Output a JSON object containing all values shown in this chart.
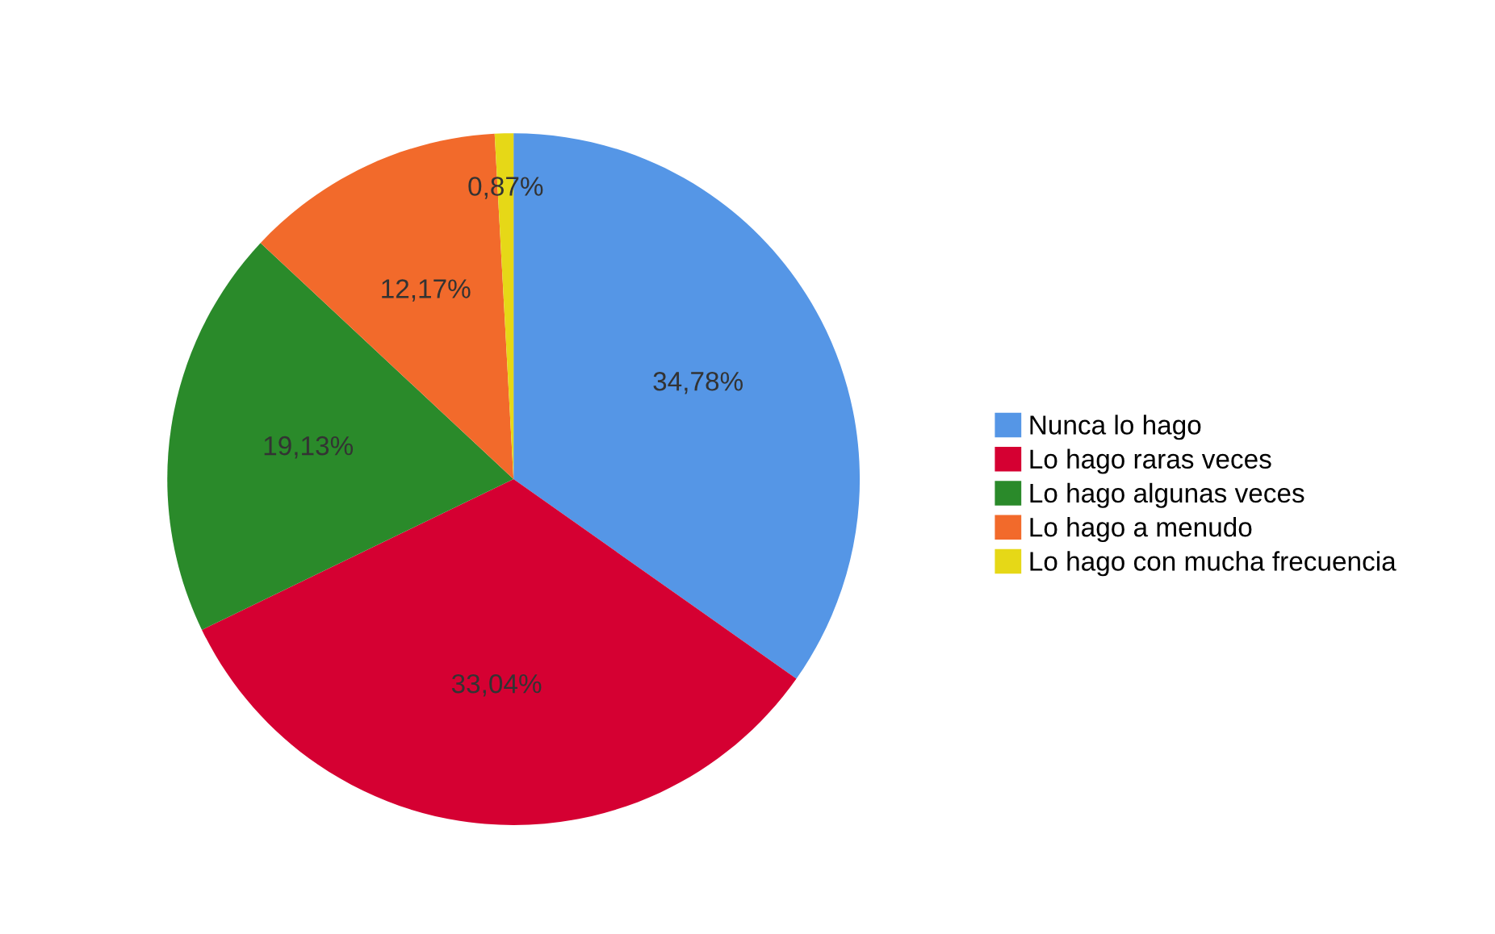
{
  "chart_data": {
    "type": "pie",
    "categories": [
      "Nunca lo hago",
      "Lo hago raras veces",
      "Lo hago algunas veces",
      "Lo hago a menudo",
      "Lo hago con mucha frecuencia"
    ],
    "values": [
      34.78,
      33.04,
      19.13,
      12.17,
      0.87
    ],
    "colors": [
      "#5596e6",
      "#d50032",
      "#2a8a2a",
      "#f26a2b",
      "#e6d817"
    ],
    "value_labels": [
      "34,78%",
      "33,04%",
      "19,13%",
      "12,17%",
      "0,87%"
    ],
    "legend": "right"
  }
}
